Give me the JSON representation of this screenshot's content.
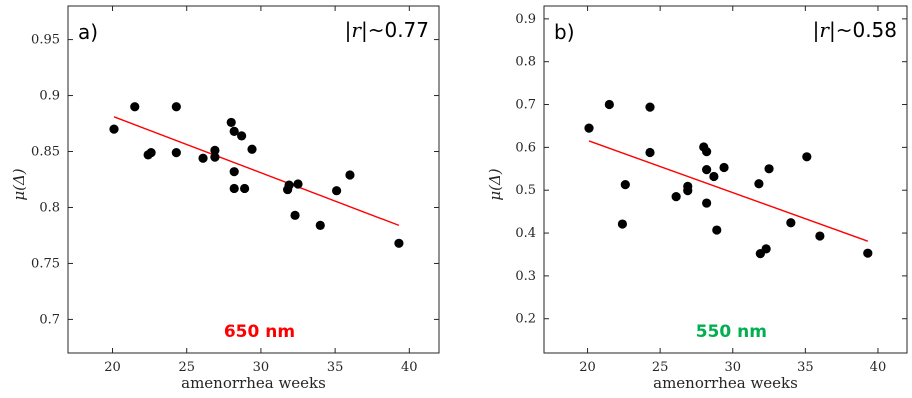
{
  "chart_data": [
    {
      "type": "scatter",
      "panel_label": "a)",
      "annotation": "|r|~0.77",
      "wavelength_label": "650 nm",
      "wavelength_color": "#ff0000",
      "xlabel": "amenorrhea weeks",
      "ylabel": "μ(Δ)",
      "xlim": [
        17,
        42
      ],
      "ylim": [
        0.67,
        0.98
      ],
      "xticks": [
        20,
        25,
        30,
        35,
        40
      ],
      "yticks": [
        0.7,
        0.75,
        0.8,
        0.85,
        0.9,
        0.95
      ],
      "ytick_labels": [
        "0.7",
        "0.75",
        "0.8",
        "0.85",
        "0.9",
        "0.95"
      ],
      "grid": false,
      "marker_color": "#000000",
      "fit_color": "#ff0000",
      "fit_line": {
        "x": [
          20.1,
          39.3
        ],
        "y": [
          0.881,
          0.784
        ]
      },
      "points": [
        {
          "x": 20.1,
          "y": 0.87
        },
        {
          "x": 21.5,
          "y": 0.89
        },
        {
          "x": 22.4,
          "y": 0.847
        },
        {
          "x": 22.6,
          "y": 0.849
        },
        {
          "x": 24.3,
          "y": 0.89
        },
        {
          "x": 24.3,
          "y": 0.849
        },
        {
          "x": 26.1,
          "y": 0.844
        },
        {
          "x": 26.9,
          "y": 0.851
        },
        {
          "x": 26.9,
          "y": 0.845
        },
        {
          "x": 28.0,
          "y": 0.876
        },
        {
          "x": 28.2,
          "y": 0.868
        },
        {
          "x": 28.2,
          "y": 0.832
        },
        {
          "x": 28.2,
          "y": 0.817
        },
        {
          "x": 28.7,
          "y": 0.864
        },
        {
          "x": 28.9,
          "y": 0.817
        },
        {
          "x": 29.4,
          "y": 0.852
        },
        {
          "x": 31.8,
          "y": 0.816
        },
        {
          "x": 31.9,
          "y": 0.82
        },
        {
          "x": 32.3,
          "y": 0.793
        },
        {
          "x": 32.5,
          "y": 0.821
        },
        {
          "x": 34.0,
          "y": 0.784
        },
        {
          "x": 35.1,
          "y": 0.815
        },
        {
          "x": 36.0,
          "y": 0.829
        },
        {
          "x": 39.3,
          "y": 0.768
        }
      ]
    },
    {
      "type": "scatter",
      "panel_label": "b)",
      "annotation": "|r|~0.58",
      "wavelength_label": "550 nm",
      "wavelength_color": "#00b050",
      "xlabel": "amenorrhea weeks",
      "ylabel": "μ(Δ)",
      "xlim": [
        17,
        42
      ],
      "ylim": [
        0.12,
        0.93
      ],
      "xticks": [
        20,
        25,
        30,
        35,
        40
      ],
      "yticks": [
        0.2,
        0.3,
        0.4,
        0.5,
        0.6,
        0.7,
        0.8,
        0.9
      ],
      "ytick_labels": [
        "0.2",
        "0.3",
        "0.4",
        "0.5",
        "0.6",
        "0.7",
        "0.8",
        "0.9"
      ],
      "grid": false,
      "marker_color": "#000000",
      "fit_color": "#ff0000",
      "fit_line": {
        "x": [
          20.1,
          39.3
        ],
        "y": [
          0.615,
          0.381
        ]
      },
      "points": [
        {
          "x": 20.1,
          "y": 0.645
        },
        {
          "x": 21.5,
          "y": 0.7
        },
        {
          "x": 22.4,
          "y": 0.421
        },
        {
          "x": 22.6,
          "y": 0.513
        },
        {
          "x": 24.3,
          "y": 0.694
        },
        {
          "x": 24.3,
          "y": 0.588
        },
        {
          "x": 26.1,
          "y": 0.485
        },
        {
          "x": 26.9,
          "y": 0.509
        },
        {
          "x": 26.9,
          "y": 0.499
        },
        {
          "x": 28.0,
          "y": 0.601
        },
        {
          "x": 28.2,
          "y": 0.59
        },
        {
          "x": 28.2,
          "y": 0.548
        },
        {
          "x": 28.2,
          "y": 0.47
        },
        {
          "x": 28.7,
          "y": 0.532
        },
        {
          "x": 28.9,
          "y": 0.407
        },
        {
          "x": 29.4,
          "y": 0.553
        },
        {
          "x": 31.8,
          "y": 0.515
        },
        {
          "x": 31.9,
          "y": 0.352
        },
        {
          "x": 32.3,
          "y": 0.363
        },
        {
          "x": 32.5,
          "y": 0.55
        },
        {
          "x": 34.0,
          "y": 0.424
        },
        {
          "x": 35.1,
          "y": 0.578
        },
        {
          "x": 36.0,
          "y": 0.393
        },
        {
          "x": 39.3,
          "y": 0.353
        }
      ]
    }
  ]
}
